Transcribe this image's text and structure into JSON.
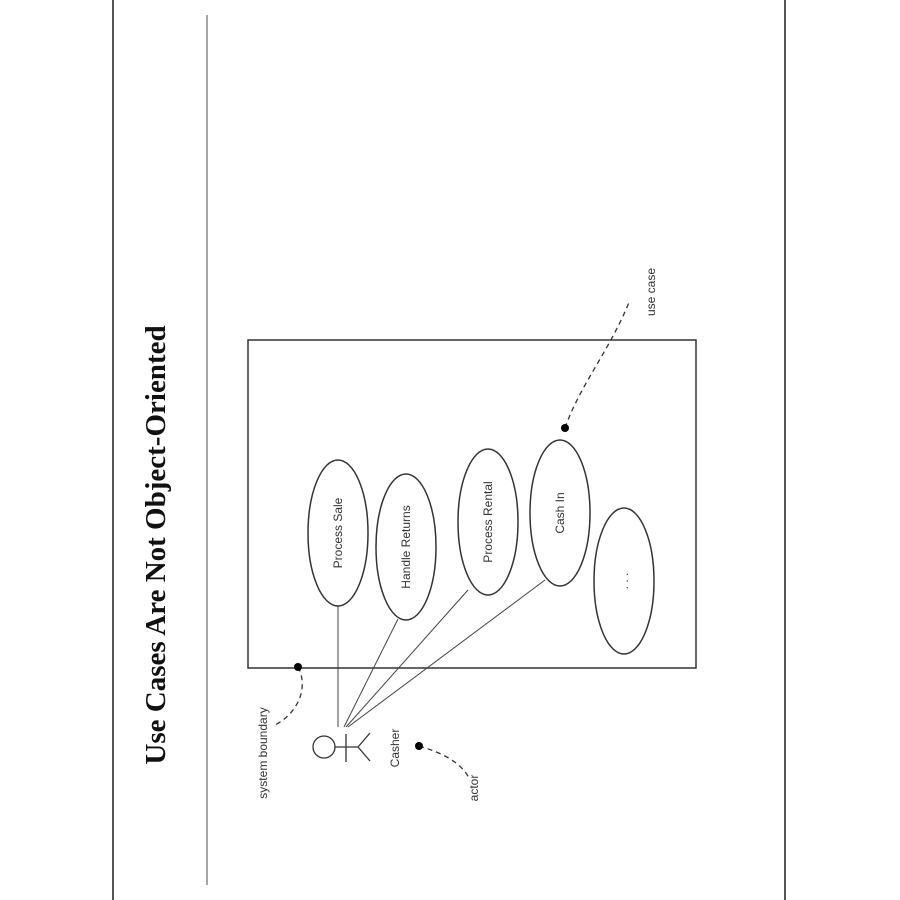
{
  "slide": {
    "title": "Use Cases Are Not Object-Oriented"
  },
  "diagram": {
    "use_cases": [
      {
        "label": "Process Sale"
      },
      {
        "label": "Handle Returns"
      },
      {
        "label": "Process Rental"
      },
      {
        "label": "Cash In"
      },
      {
        "label": ". . ."
      }
    ],
    "actor": {
      "label": "Casher"
    },
    "annotations": {
      "use_case": "use case",
      "system_boundary": "system boundary",
      "actor": "actor"
    }
  }
}
